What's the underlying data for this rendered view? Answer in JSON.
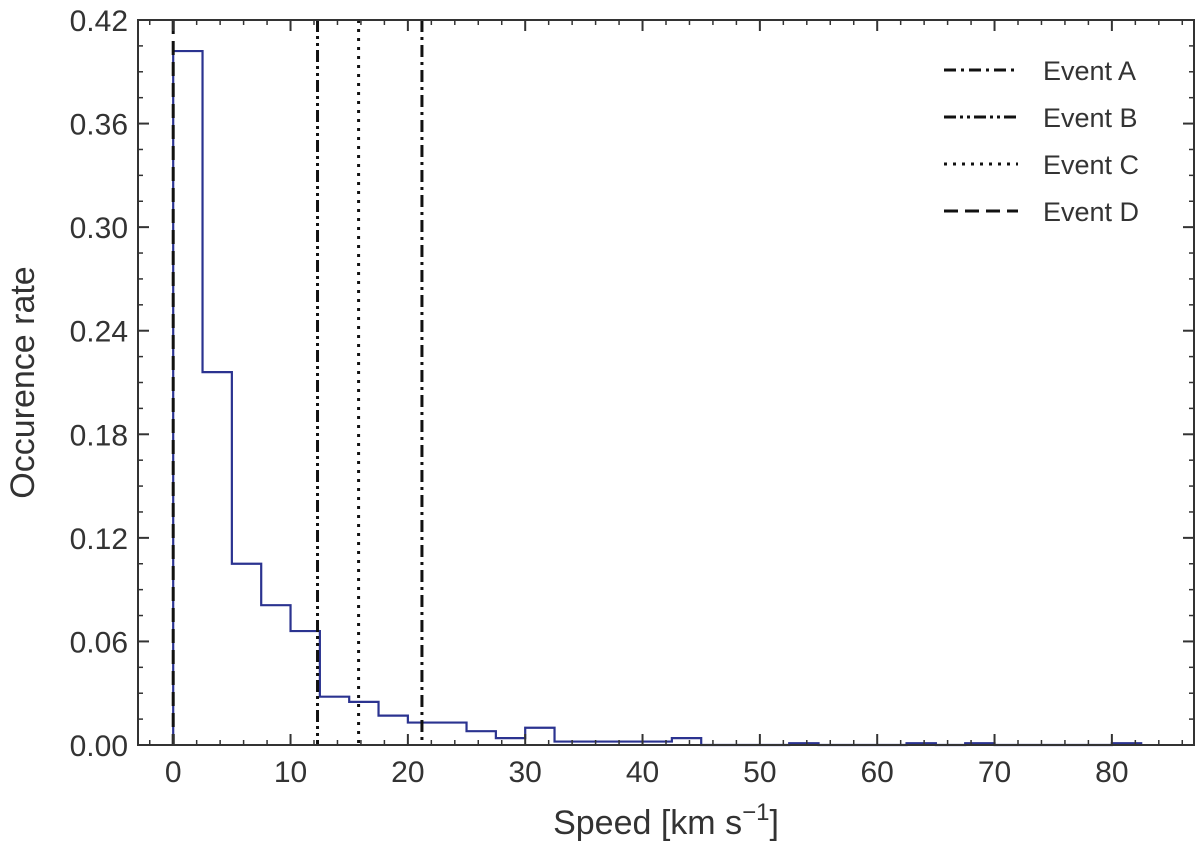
{
  "chart_data": {
    "type": "histogram",
    "title": "",
    "xlabel": "Speed [km s",
    "xlabel_unit_exponent": "−1",
    "xlabel_suffix": "]",
    "ylabel": "Occurence rate",
    "xlim": [
      -3,
      87
    ],
    "ylim": [
      0,
      0.42
    ],
    "xticks": [
      0,
      10,
      20,
      30,
      40,
      50,
      60,
      70,
      80
    ],
    "yticks": [
      0.0,
      0.06,
      0.12,
      0.18,
      0.24,
      0.3,
      0.36,
      0.42
    ],
    "ytick_labels": [
      "0.00",
      "0.06",
      "0.12",
      "0.18",
      "0.24",
      "0.30",
      "0.36",
      "0.42"
    ],
    "grid": false,
    "legend_position": "top-right",
    "bin_width": 2.5,
    "bin_start": 0,
    "values": [
      0.402,
      0.216,
      0.105,
      0.081,
      0.066,
      0.028,
      0.025,
      0.017,
      0.013,
      0.013,
      0.008,
      0.004,
      0.01,
      0.002,
      0.002,
      0.002,
      0.002,
      0.004,
      0,
      0,
      0,
      0.001,
      0,
      0,
      0,
      0.001,
      0,
      0.001,
      0,
      0,
      0,
      0,
      0.001
    ],
    "line_color": "#2b3390",
    "events": [
      {
        "name": "Event A",
        "x": 21.2,
        "style": "dashdot"
      },
      {
        "name": "Event B",
        "x": 12.3,
        "style": "dashdotdot"
      },
      {
        "name": "Event C",
        "x": 15.8,
        "style": "dotted"
      },
      {
        "name": "Event D",
        "x": 0.0,
        "style": "dashed"
      }
    ]
  }
}
